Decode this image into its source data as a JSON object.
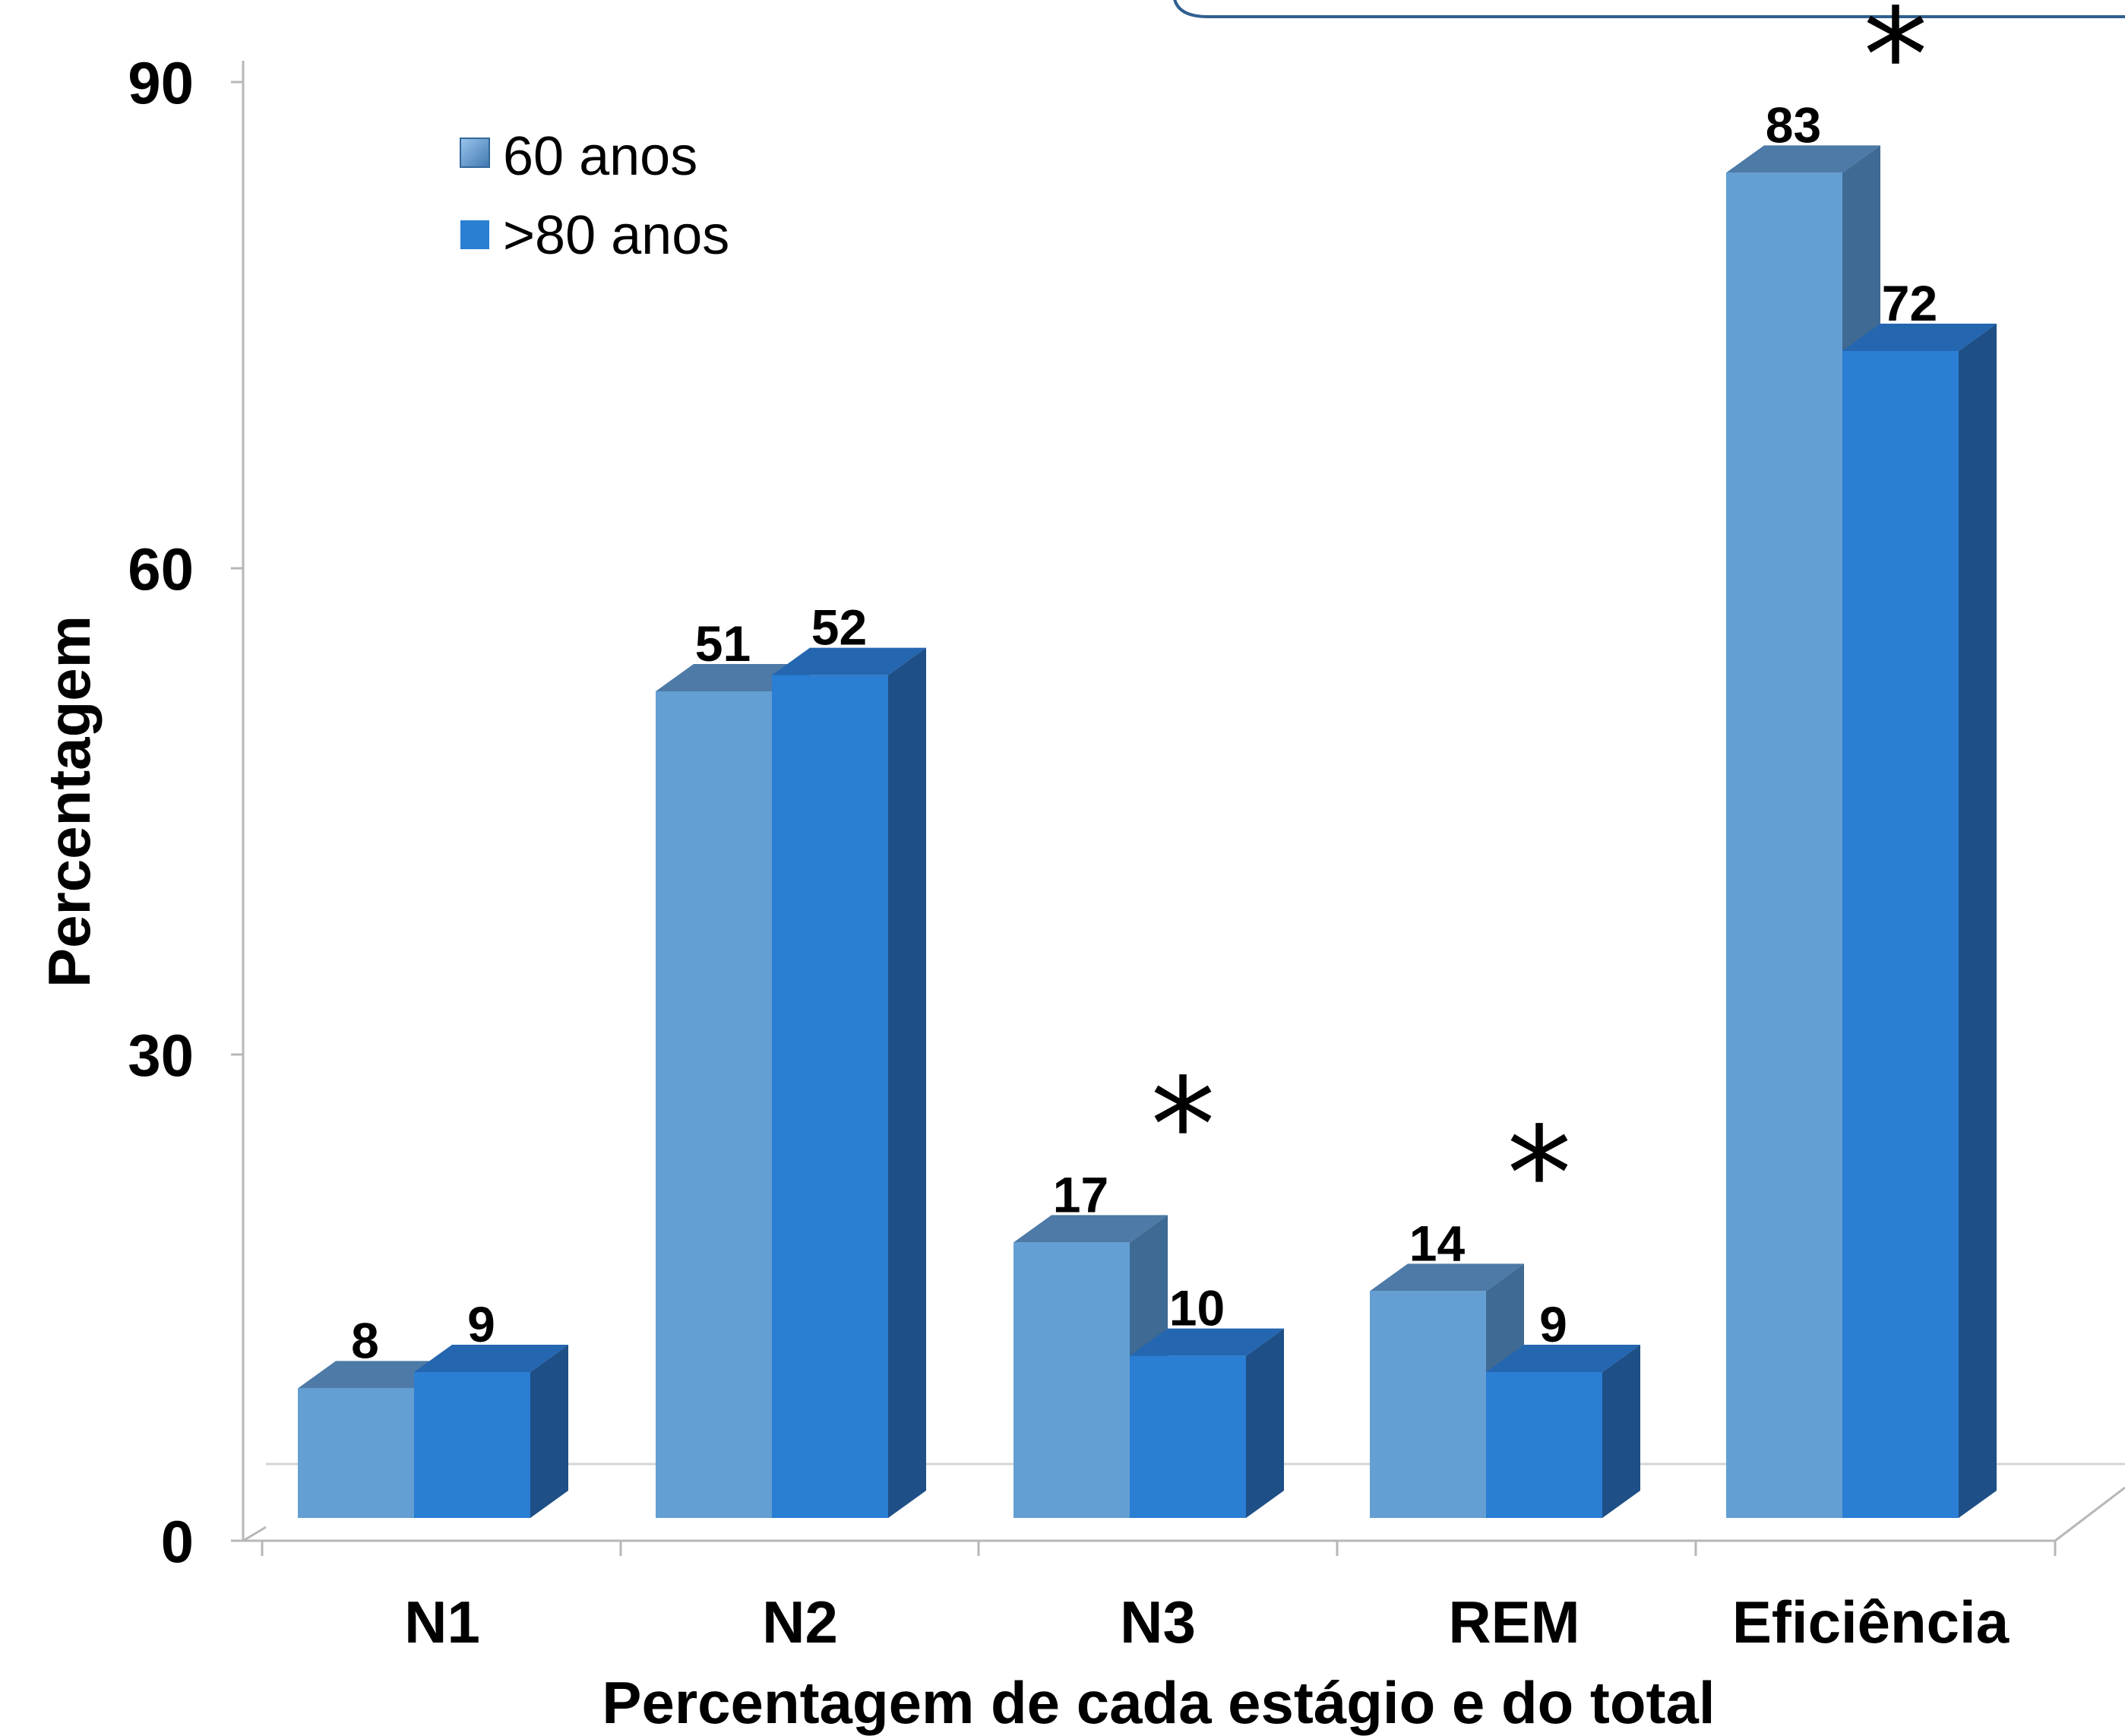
{
  "chart_data": {
    "type": "bar",
    "categories": [
      "N1",
      "N2",
      "N3",
      "REM",
      "Eficiência"
    ],
    "series": [
      {
        "name": "60 anos",
        "values": [
          8,
          51,
          17,
          14,
          83
        ],
        "color": "#639fd3"
      },
      {
        "name": ">80 anos",
        "values": [
          9,
          52,
          10,
          9,
          72
        ],
        "color": "#2a7ed3"
      }
    ],
    "data_labels": [
      [
        "8",
        "51",
        "17",
        "14",
        "83"
      ],
      [
        "9",
        "52",
        "10",
        "9",
        "72"
      ]
    ],
    "significance_marker": "*",
    "significant_categories": [
      "N3",
      "REM",
      "Eficiência"
    ],
    "xlabel": "Percentagem de cada estágio e do total",
    "ylabel": "Percentagem",
    "ylim": [
      0,
      90
    ],
    "yticks": [
      "0",
      "30",
      "60",
      "90"
    ],
    "grid": false,
    "legend_position": "top-left",
    "style": "3d-column"
  }
}
